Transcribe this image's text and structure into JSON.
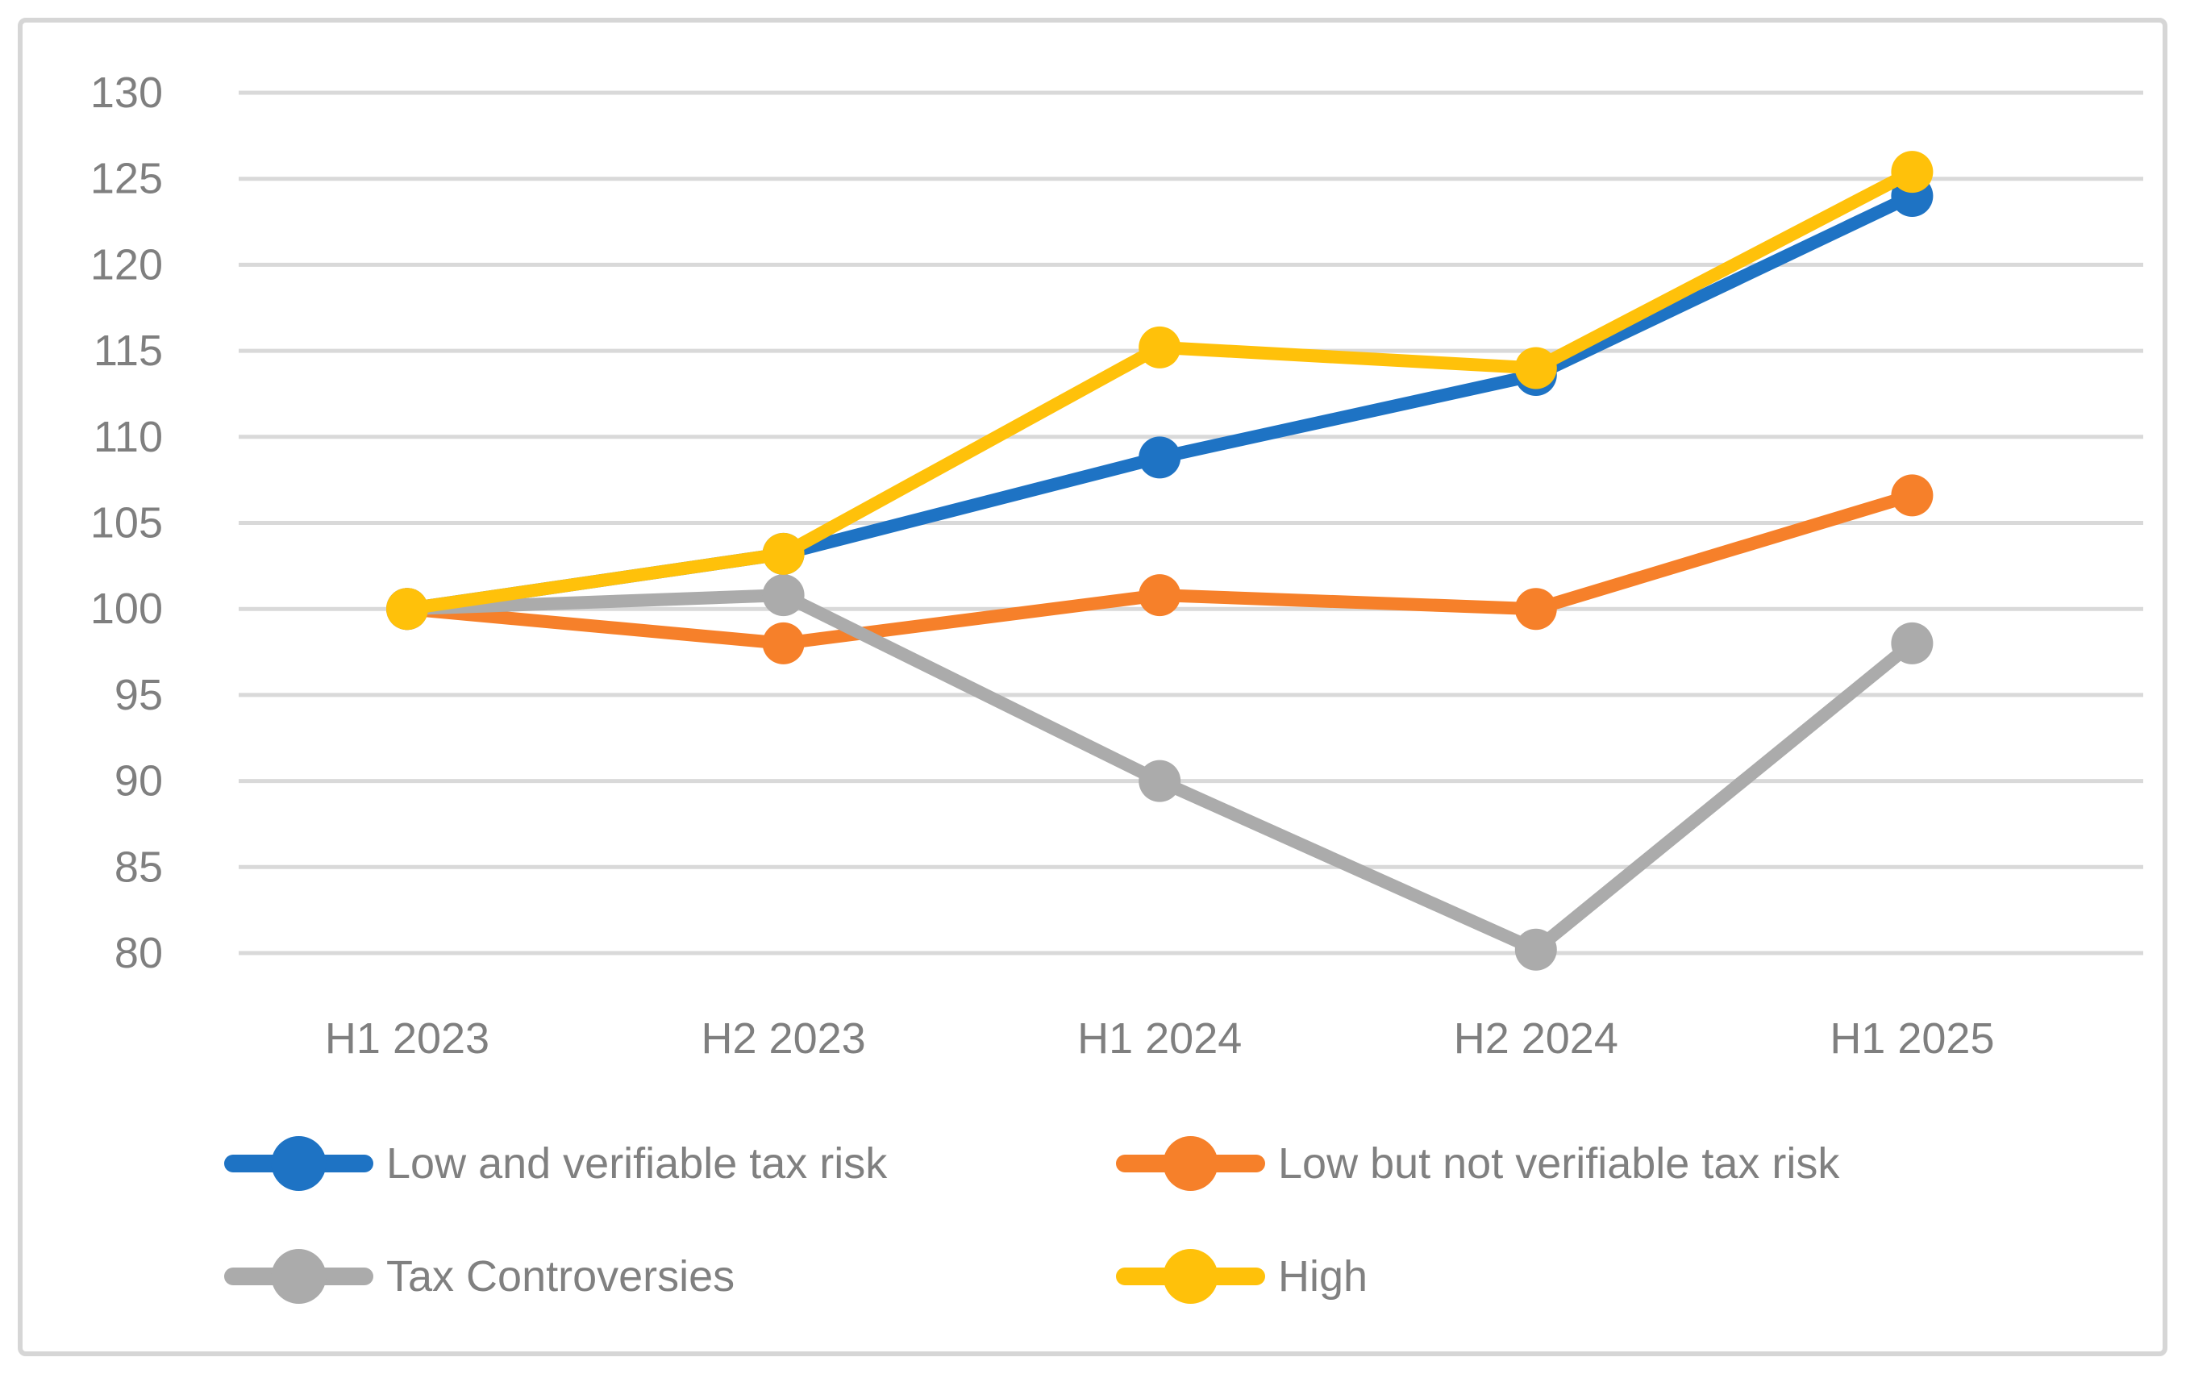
{
  "chart_data": {
    "type": "line",
    "title": "",
    "xlabel": "",
    "ylabel": "",
    "categories": [
      "H1 2023",
      "H2 2023",
      "H1 2024",
      "H2 2024",
      "H1 2025"
    ],
    "series": [
      {
        "name": "Low and verifiable tax risk",
        "color": "#1E73C4",
        "values": [
          100,
          103.2,
          108.8,
          113.6,
          124.0
        ]
      },
      {
        "name": "Low but not verifiable tax risk",
        "color": "#F6802A",
        "values": [
          100,
          98.0,
          100.8,
          100.0,
          106.6
        ]
      },
      {
        "name": "Tax Controversies",
        "color": "#ABABAB",
        "values": [
          100,
          100.8,
          90.0,
          80.2,
          98.0
        ]
      },
      {
        "name": "High",
        "color": "#FFC10A",
        "values": [
          100,
          103.2,
          115.2,
          114.0,
          125.4
        ]
      }
    ],
    "yticks": [
      80,
      85,
      90,
      95,
      100,
      105,
      110,
      115,
      120,
      125,
      130
    ],
    "ylim": [
      80,
      130
    ],
    "grid": "horizontal",
    "legend_position": "bottom",
    "legend_rows": [
      [
        0,
        1
      ],
      [
        2,
        3
      ]
    ],
    "colors": {
      "gridline": "#d9d9d9",
      "axis_text": "#7f7f7f",
      "legend_text": "#808080",
      "frame_border": "#d6d6d6",
      "background": "#ffffff"
    }
  }
}
